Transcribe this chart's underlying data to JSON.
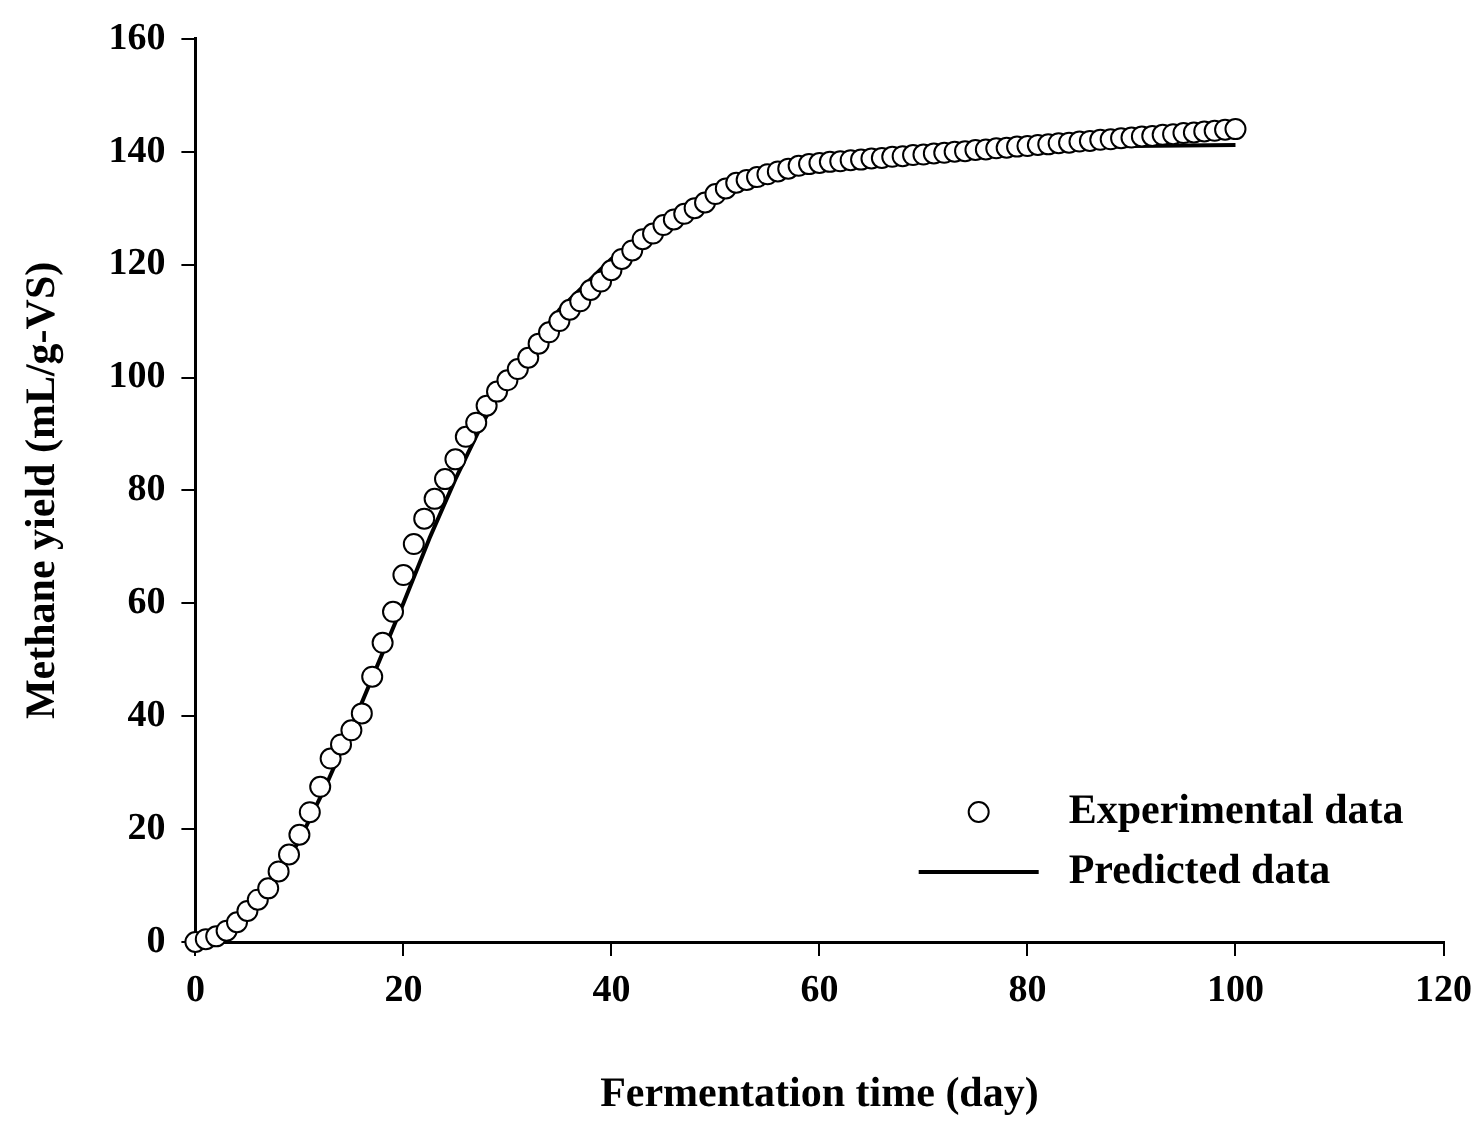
{
  "chart_data": {
    "type": "scatter",
    "xlabel": "Fermentation time (day)",
    "ylabel": "Methane yield (mL/g-VS)",
    "xlim": [
      0,
      120
    ],
    "xticks": [
      0,
      20,
      40,
      60,
      80,
      100,
      120
    ],
    "ylim": [
      0,
      160
    ],
    "yticks": [
      0,
      20,
      40,
      60,
      80,
      100,
      120,
      140,
      160
    ],
    "grid": false,
    "legend": "bottom right",
    "series": [
      {
        "name": "Experimental data",
        "type": "scatter",
        "marker": "circle",
        "color": "#000000",
        "x": [
          0,
          1,
          2,
          3,
          4,
          5,
          6,
          7,
          8,
          9,
          10,
          11,
          12,
          13,
          14,
          15,
          16,
          17,
          18,
          19,
          20,
          21,
          22,
          23,
          24,
          25,
          26,
          27,
          28,
          29,
          30,
          31,
          32,
          33,
          34,
          35,
          36,
          37,
          38,
          39,
          40,
          41,
          42,
          43,
          44,
          45,
          46,
          47,
          48,
          49,
          50,
          51,
          52,
          53,
          54,
          55,
          56,
          57,
          58,
          59,
          60,
          61,
          62,
          63,
          64,
          65,
          66,
          67,
          68,
          69,
          70,
          71,
          72,
          73,
          74,
          75,
          76,
          77,
          78,
          79,
          80,
          81,
          82,
          83,
          84,
          85,
          86,
          87,
          88,
          89,
          90,
          91,
          92,
          93,
          94,
          95,
          96,
          97,
          98,
          99,
          100
        ],
        "values": [
          0,
          0.5,
          1,
          2,
          3.5,
          5.5,
          7.5,
          9.5,
          12.5,
          15.5,
          19,
          23,
          27.5,
          32.5,
          35,
          37.5,
          40.5,
          47,
          53,
          58.5,
          65,
          70.5,
          75,
          78.5,
          82,
          85.5,
          89.5,
          92,
          95,
          97.5,
          99.5,
          101.5,
          103.5,
          106,
          108,
          110,
          112,
          113.5,
          115.5,
          117,
          119,
          121,
          122.5,
          124.5,
          125.5,
          127,
          128,
          129,
          130,
          131,
          132.5,
          133.5,
          134.5,
          135,
          135.5,
          136,
          136.5,
          137,
          137.5,
          137.8,
          138,
          138.2,
          138.3,
          138.5,
          138.6,
          138.8,
          138.9,
          139.1,
          139.2,
          139.4,
          139.5,
          139.7,
          139.8,
          140,
          140.1,
          140.3,
          140.4,
          140.6,
          140.7,
          140.9,
          141,
          141.2,
          141.3,
          141.5,
          141.6,
          141.8,
          141.9,
          142.1,
          142.2,
          142.4,
          142.5,
          142.7,
          142.8,
          143,
          143.1,
          143.3,
          143.4,
          143.6,
          143.7,
          143.9,
          144
        ]
      },
      {
        "name": "Predicted data",
        "type": "line",
        "marker": "none",
        "line_style": "solid",
        "color": "#000000",
        "x": [
          0,
          2.5,
          5,
          7.5,
          10,
          12.5,
          15,
          17.5,
          20,
          22.5,
          25,
          27.5,
          30,
          35,
          40,
          45,
          50,
          55,
          60,
          70,
          80,
          90,
          100
        ],
        "values": [
          0,
          1.5,
          5,
          10.5,
          18,
          27.5,
          38,
          49,
          60,
          71.5,
          82,
          91.5,
          100,
          112,
          121,
          127.5,
          132,
          135.5,
          137.5,
          139.5,
          140.5,
          141,
          141.2
        ]
      }
    ]
  }
}
